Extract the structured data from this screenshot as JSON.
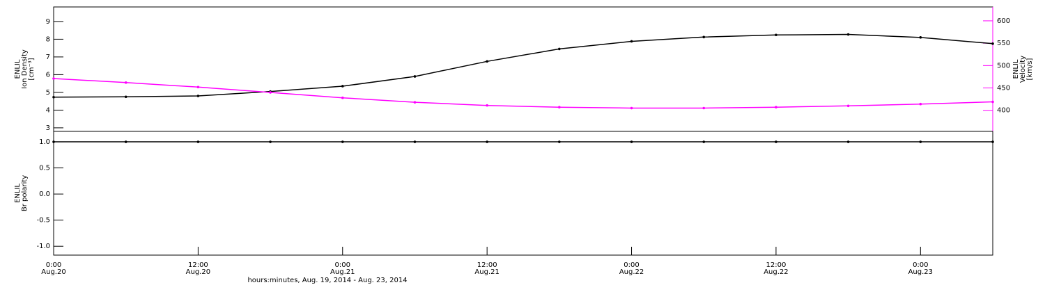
{
  "chart_data": [
    {
      "type": "line",
      "ylabel": [
        "ENLIL",
        "Ion Density",
        "[cm⁻³]"
      ],
      "y2label": [
        "ENLIL",
        "Velocity",
        "[km/s]"
      ],
      "xlim": [
        0,
        78
      ],
      "ylim": [
        2.8,
        9.82
      ],
      "yticks": [
        3,
        4,
        5,
        6,
        7,
        8,
        9
      ],
      "y2lim": [
        353,
        631
      ],
      "y2ticks": [
        400,
        450,
        500,
        550,
        600
      ],
      "x": [
        0,
        6,
        12,
        18,
        24,
        30,
        36,
        42,
        48,
        54,
        60,
        66,
        72,
        78
      ],
      "series": [
        {
          "name": "Ion Density",
          "color": "#000000",
          "values": [
            4.73,
            4.75,
            4.8,
            5.05,
            5.35,
            5.9,
            6.75,
            7.45,
            7.88,
            8.12,
            8.24,
            8.27,
            8.1,
            7.75
          ]
        },
        {
          "name": "Velocity",
          "color": "#ff00ff",
          "axis": "y2",
          "values": [
            471,
            462,
            452,
            440,
            428,
            418,
            411,
            407,
            405,
            405,
            407,
            410,
            414,
            419
          ]
        }
      ]
    },
    {
      "type": "line",
      "ylabel": [
        "ENLIL",
        "Br polarity"
      ],
      "xlabel": "hours:minutes, Aug. 19, 2014 - Aug. 23, 2014",
      "xlim": [
        0,
        78
      ],
      "xticks": [
        {
          "value": 0,
          "label": "0:00",
          "date": "Aug.20"
        },
        {
          "value": 12,
          "label": "12:00",
          "date": "Aug.20"
        },
        {
          "value": 24,
          "label": "0:00",
          "date": "Aug.21"
        },
        {
          "value": 36,
          "label": "12:00",
          "date": "Aug.21"
        },
        {
          "value": 48,
          "label": "0:00",
          "date": "Aug.22"
        },
        {
          "value": 60,
          "label": "12:00",
          "date": "Aug.22"
        },
        {
          "value": 72,
          "label": "0:00",
          "date": "Aug.23"
        }
      ],
      "ylim": [
        -1.17,
        1.2
      ],
      "yticks": [
        {
          "value": -1,
          "label": "-1.0"
        },
        {
          "value": -0.5,
          "label": "-0.5"
        },
        {
          "value": 0,
          "label": "0.0"
        },
        {
          "value": 0.5,
          "label": "0.5"
        },
        {
          "value": 1,
          "label": "1.0"
        }
      ],
      "x": [
        0,
        6,
        12,
        18,
        24,
        30,
        36,
        42,
        48,
        54,
        60,
        66,
        72,
        78
      ],
      "series": [
        {
          "name": "Br polarity",
          "color": "#000000",
          "values": [
            1,
            1,
            1,
            1,
            1,
            1,
            1,
            1,
            1,
            1,
            1,
            1,
            1,
            1
          ]
        }
      ]
    }
  ]
}
